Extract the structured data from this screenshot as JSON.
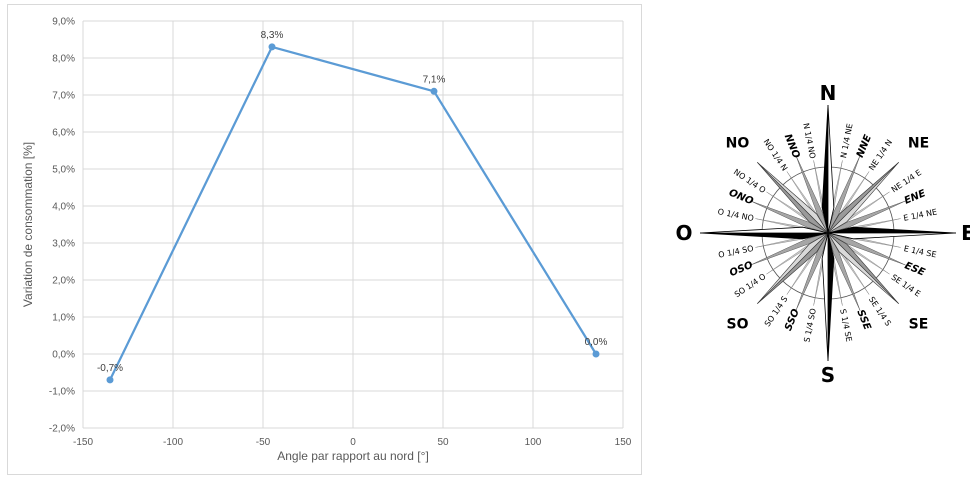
{
  "chart_data": {
    "type": "line",
    "title": "",
    "xlabel": "Angle par rapport au nord [°]",
    "ylabel": "Variation de consommation [%]",
    "xlim": [
      -150,
      150
    ],
    "ylim": [
      -2.0,
      9.0
    ],
    "x_ticks": [
      -150,
      -100,
      -50,
      0,
      50,
      100,
      150
    ],
    "y_ticks": [
      -2.0,
      -1.0,
      0.0,
      1.0,
      2.0,
      3.0,
      4.0,
      5.0,
      6.0,
      7.0,
      8.0,
      9.0
    ],
    "x_tick_labels": [
      "-150",
      "-100",
      "-50",
      "0",
      "50",
      "100",
      "150"
    ],
    "y_tick_labels": [
      "-2,0%",
      "-1,0%",
      "0,0%",
      "1,0%",
      "2,0%",
      "3,0%",
      "4,0%",
      "5,0%",
      "6,0%",
      "7,0%",
      "8,0%",
      "9,0%"
    ],
    "grid": true,
    "series": [
      {
        "color": "#5b9bd5",
        "x": [
          -135,
          -45,
          45,
          135
        ],
        "y": [
          -0.7,
          8.3,
          7.1,
          0.0
        ],
        "labels": [
          "-0,7%",
          "8,3%",
          "7,1%",
          "0,0%"
        ]
      }
    ]
  },
  "compass": {
    "cardinals": {
      "N": "N",
      "E": "E",
      "S": "S",
      "O": "O"
    },
    "intercardinals": [
      "NE",
      "SE",
      "SO",
      "NO"
    ],
    "secondary": [
      "NNE",
      "ENE",
      "ESE",
      "SSE",
      "SSO",
      "OSO",
      "ONO",
      "NNO"
    ],
    "quarters": [
      "N 1/4 NE",
      "NE 1/4 N",
      "NE 1/4 E",
      "E 1/4 NE",
      "E 1/4 SE",
      "SE 1/4 E",
      "SE 1/4 S",
      "S 1/4 SE",
      "S 1/4 SO",
      "SO 1/4 S",
      "SO 1/4 O",
      "O 1/4 SO",
      "O 1/4 NO",
      "NO 1/4 O",
      "NO 1/4 N",
      "N 1/4 NO"
    ]
  }
}
